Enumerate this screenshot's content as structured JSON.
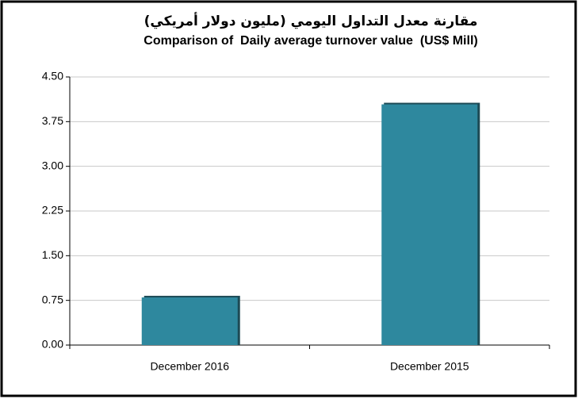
{
  "chart_data": {
    "type": "bar",
    "title": "مقارنة معدل التداول اليومي (مليون دولار أمريكي)",
    "subtitle": "Comparison of  Daily average turnover value  (US$ Mill)",
    "categories": [
      "December 2016",
      "December 2015"
    ],
    "values": [
      0.8,
      4.04
    ],
    "color": "#2e889e",
    "ylim": [
      0,
      4.5
    ],
    "yticks": [
      {
        "value": 0,
        "label": "0.00"
      },
      0.75,
      {
        "value": 1.5,
        "label": "1.50"
      },
      2.25,
      {
        "value": 3,
        "label": "3.00"
      },
      3.75,
      {
        "value": 4.5,
        "label": "4.50"
      }
    ],
    "grid": true
  }
}
